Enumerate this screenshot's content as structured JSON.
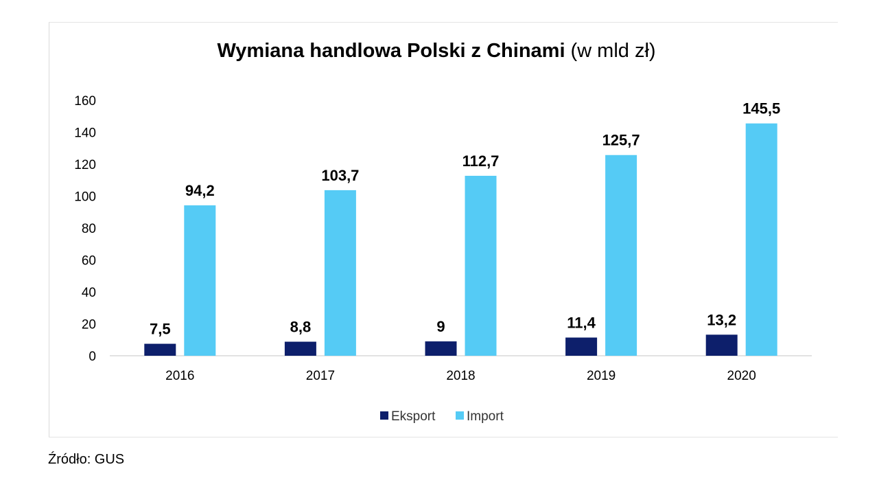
{
  "source_note": "Źródło: GUS",
  "chart_data": {
    "type": "bar",
    "title": "Wymiana handlowa Polski z Chinami",
    "title_unit": "(w mld zł)",
    "categories": [
      "2016",
      "2017",
      "2018",
      "2019",
      "2020"
    ],
    "series": [
      {
        "name": "Eksport",
        "color": "#0d1f6b",
        "values": [
          7.5,
          8.8,
          9,
          11.4,
          13.2
        ],
        "labels": [
          "7,5",
          "8,8",
          "9",
          "11,4",
          "13,2"
        ]
      },
      {
        "name": "Import",
        "color": "#55cbf5",
        "values": [
          94.2,
          103.7,
          112.7,
          125.7,
          145.5
        ],
        "labels": [
          "94,2",
          "103,7",
          "112,7",
          "125,7",
          "145,5"
        ]
      }
    ],
    "ylim": [
      0,
      160
    ],
    "yticks": [
      0,
      20,
      40,
      60,
      80,
      100,
      120,
      140,
      160
    ],
    "grid": false,
    "legend_position": "bottom"
  }
}
